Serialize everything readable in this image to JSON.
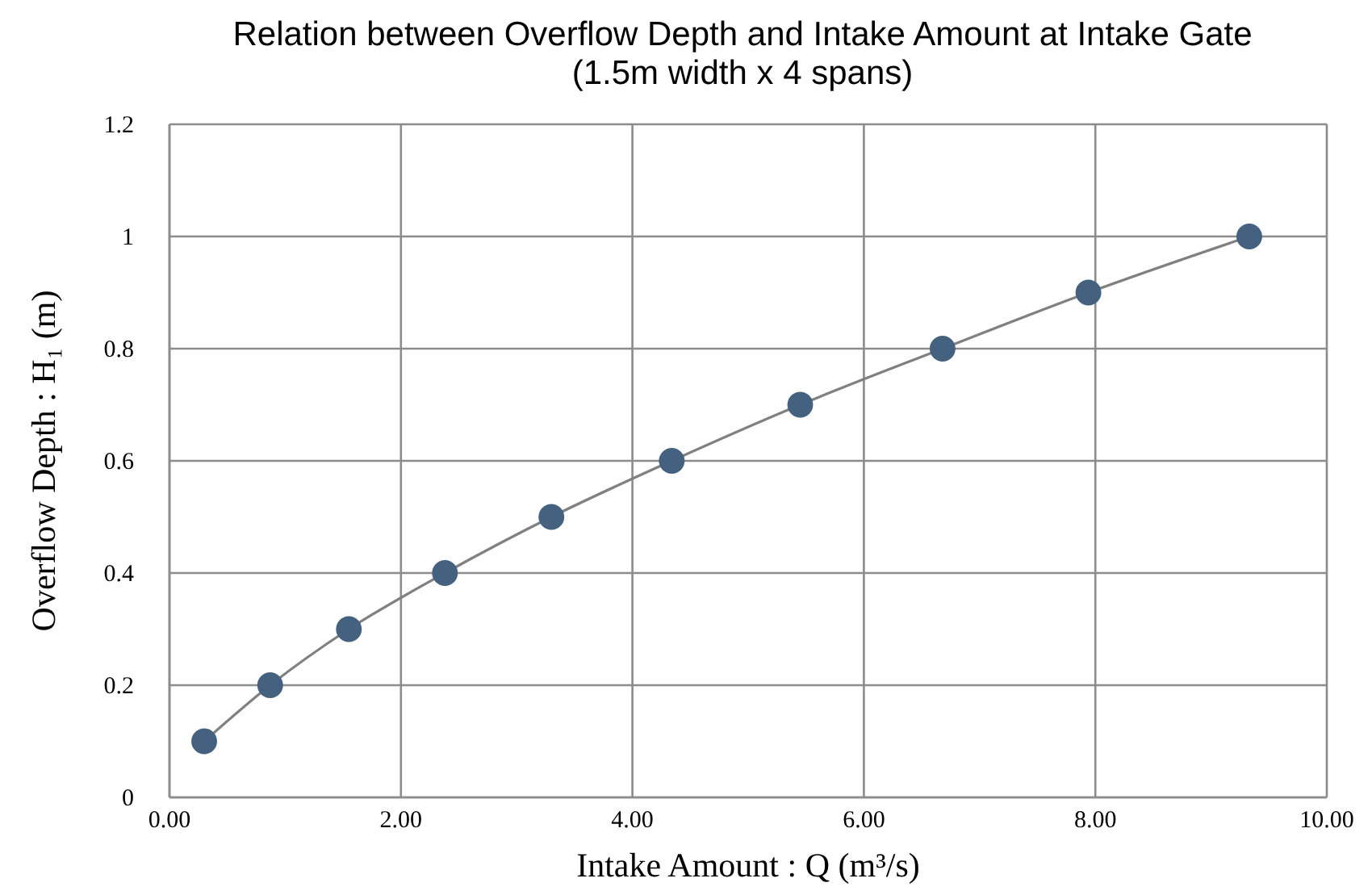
{
  "chart_data": {
    "type": "line",
    "title": "Relation between Overflow Depth and Intake Amount at Intake Gate (1.5m width x 4 spans)",
    "xlabel": "Intake Amount : Q (m³/s)",
    "ylabel": "Overflow Depth : H₁ (m)",
    "x": [
      0.3,
      0.87,
      1.55,
      2.38,
      3.3,
      4.34,
      5.45,
      6.68,
      7.94,
      9.33
    ],
    "series": [
      {
        "color": "#44627f",
        "values": [
          0.1,
          0.2,
          0.3,
          0.4,
          0.5,
          0.6,
          0.7,
          0.8,
          0.9,
          1.0
        ]
      }
    ],
    "xlim": [
      0,
      10
    ],
    "xticks": [
      {
        "value": 0,
        "label": "0.00"
      },
      {
        "value": 2,
        "label": "2.00"
      },
      {
        "value": 4,
        "label": "4.00"
      },
      {
        "value": 6,
        "label": "6.00"
      },
      {
        "value": 8,
        "label": "8.00"
      },
      {
        "value": 10,
        "label": "10.00"
      }
    ],
    "ylim": [
      0,
      1.2
    ],
    "yticks": [
      0,
      0.2,
      0.4,
      0.6,
      0.8,
      1,
      1.2
    ],
    "grid": true,
    "marker": "circle"
  }
}
